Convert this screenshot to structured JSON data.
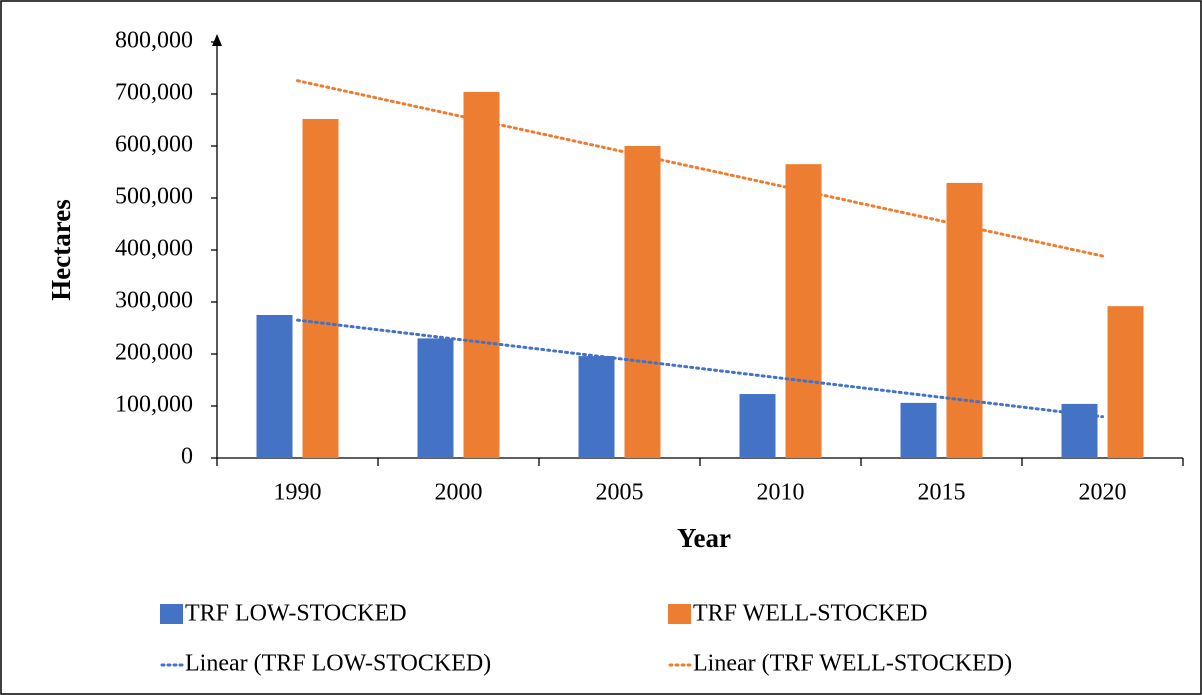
{
  "chart_data": {
    "type": "bar",
    "x_label": "Year",
    "y_label": "Hectares",
    "categories": [
      "1990",
      "2000",
      "2005",
      "2010",
      "2015",
      "2020"
    ],
    "series": [
      {
        "name": "TRF LOW-STOCKED",
        "color": "#4472c4",
        "values": [
          275000,
          230000,
          196000,
          123000,
          106000,
          104000
        ],
        "trendline": "Linear (TRF LOW-STOCKED)"
      },
      {
        "name": "TRF WELL-STOCKED",
        "color": "#ed7d31",
        "values": [
          652000,
          704000,
          600000,
          565000,
          529000,
          292000
        ],
        "trendline": "Linear (TRF WELL-STOCKED)"
      }
    ],
    "ylim": [
      0,
      800000
    ],
    "yticks": [
      0,
      {
        "value": 100000,
        "label": "100,000"
      },
      {
        "value": 200000,
        "label": "200,000"
      },
      {
        "value": 300000,
        "label": "300,000"
      },
      {
        "value": 400000,
        "label": "400,000"
      },
      {
        "value": 500000,
        "label": "500,000"
      },
      {
        "value": 600000,
        "label": "600,000"
      },
      {
        "value": 700000,
        "label": "700,000"
      },
      {
        "value": 800000,
        "label": "800,000"
      }
    ]
  }
}
